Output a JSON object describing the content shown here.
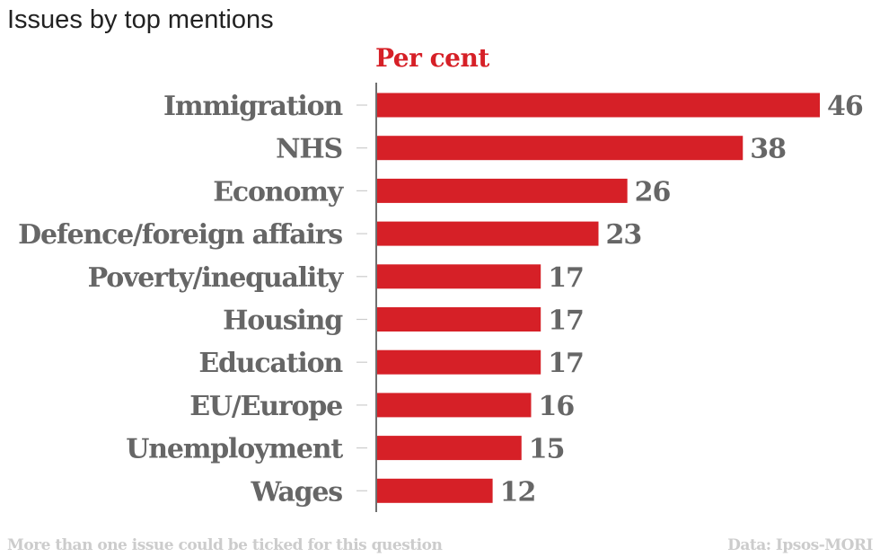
{
  "header": {
    "title": "Issues by top mentions",
    "unit_label": "Per cent"
  },
  "footer": {
    "note": "More than one issue could be ticked for this question",
    "source": "Data: Ipsos-MORI"
  },
  "colors": {
    "bar": "#d62027",
    "unit_label": "#d62027",
    "labels": "#666666",
    "footer": "#cccccc",
    "axis": "#222222"
  },
  "chart_data": {
    "type": "bar",
    "orientation": "horizontal",
    "title": "Issues by top mentions",
    "xlabel": "Per cent",
    "ylabel": "",
    "categories": [
      "Immigration",
      "NHS",
      "Economy",
      "Defence/foreign affairs",
      "Poverty/inequality",
      "Housing",
      "Education",
      "EU/Europe",
      "Unemployment",
      "Wages"
    ],
    "values": [
      46,
      38,
      26,
      23,
      17,
      17,
      17,
      16,
      15,
      12
    ],
    "xlim": [
      0,
      46
    ],
    "grid": false,
    "legend": "none",
    "data_labels": true
  }
}
